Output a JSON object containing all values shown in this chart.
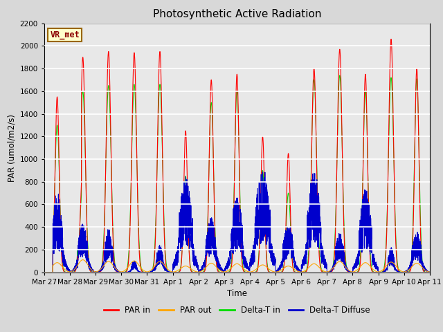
{
  "title": "Photosynthetic Active Radiation",
  "ylabel": "PAR (umol/m2/s)",
  "xlabel": "Time",
  "annotation": "VR_met",
  "ylim": [
    0,
    2200
  ],
  "fig_bg_color": "#d8d8d8",
  "plot_bg_color": "#e8e8e8",
  "legend_items": [
    "PAR in",
    "PAR out",
    "Delta-T in",
    "Delta-T Diffuse"
  ],
  "legend_colors": [
    "#ff0000",
    "#ffa500",
    "#00dd00",
    "#0000cc"
  ],
  "x_tick_labels": [
    "Mar 27",
    "Mar 28",
    "Mar 29",
    "Mar 30",
    "Mar 31",
    "Apr 1",
    "Apr 2",
    "Apr 3",
    "Apr 4",
    "Apr 5",
    "Apr 6",
    "Apr 7",
    "Apr 8",
    "Apr 9",
    "Apr 10",
    "Apr 11"
  ],
  "n_days": 15,
  "pts_per_day": 288,
  "peaks_par_in": [
    1550,
    1900,
    1950,
    1940,
    1950,
    1250,
    1700,
    1750,
    1200,
    1050,
    1800,
    1970,
    1750,
    2060,
    1800
  ],
  "peaks_green": [
    1300,
    1600,
    1650,
    1660,
    1660,
    850,
    1500,
    1600,
    900,
    700,
    1700,
    1740,
    1600,
    1720,
    1710
  ],
  "peaks_blue": [
    650,
    400,
    350,
    95,
    220,
    780,
    450,
    630,
    870,
    400,
    830,
    340,
    680,
    200,
    330
  ],
  "peaks_orange": [
    85,
    110,
    95,
    100,
    95,
    55,
    80,
    75,
    65,
    55,
    75,
    95,
    85,
    90,
    80
  ],
  "day_widths_par": [
    0.08,
    0.09,
    0.09,
    0.09,
    0.09,
    0.07,
    0.08,
    0.08,
    0.07,
    0.07,
    0.09,
    0.09,
    0.08,
    0.09,
    0.08
  ],
  "day_widths_grn": [
    0.09,
    0.1,
    0.1,
    0.1,
    0.1,
    0.08,
    0.09,
    0.09,
    0.08,
    0.08,
    0.1,
    0.1,
    0.09,
    0.1,
    0.09
  ],
  "blue_widths": [
    0.2,
    0.18,
    0.16,
    0.1,
    0.14,
    0.25,
    0.2,
    0.22,
    0.28,
    0.2,
    0.25,
    0.16,
    0.23,
    0.12,
    0.18
  ]
}
